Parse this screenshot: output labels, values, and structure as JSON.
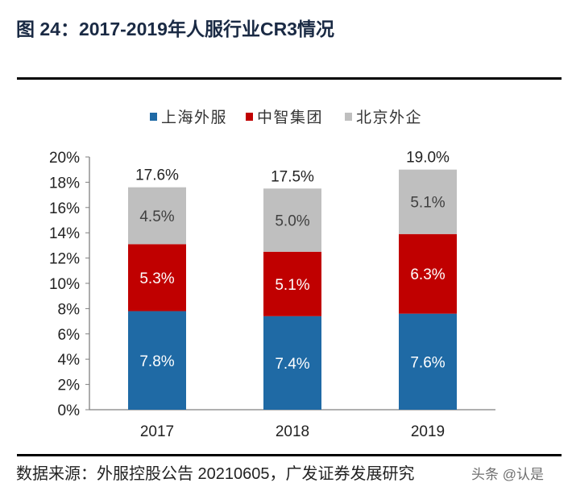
{
  "title": "图 24：2017-2019年人服行业CR3情况",
  "source": "数据来源：外服控股公告 20210605，广发证券发展研究",
  "watermark": "头条 @认是",
  "chart_data": {
    "type": "bar",
    "stacked": true,
    "categories": [
      "2017",
      "2018",
      "2019"
    ],
    "series": [
      {
        "name": "上海外服",
        "color": "#1f6aa5",
        "values": [
          7.8,
          7.4,
          7.6
        ],
        "labels": [
          "7.8%",
          "7.4%",
          "7.6%"
        ],
        "label_color": "#ffffff"
      },
      {
        "name": "中智集团",
        "color": "#c00000",
        "values": [
          5.3,
          5.1,
          6.3
        ],
        "labels": [
          "5.3%",
          "5.1%",
          "6.3%"
        ],
        "label_color": "#ffffff"
      },
      {
        "name": "北京外企",
        "color": "#bfbfbf",
        "values": [
          4.5,
          5.0,
          5.1
        ],
        "labels": [
          "4.5%",
          "5.0%",
          "5.1%"
        ],
        "label_color": "#404040"
      }
    ],
    "totals": [
      "17.6%",
      "17.5%",
      "19.0%"
    ],
    "ylim": [
      0,
      20
    ],
    "yticks": [
      "0%",
      "2%",
      "4%",
      "6%",
      "8%",
      "10%",
      "12%",
      "14%",
      "16%",
      "18%",
      "20%"
    ],
    "legend": "top-center",
    "grid": false
  }
}
